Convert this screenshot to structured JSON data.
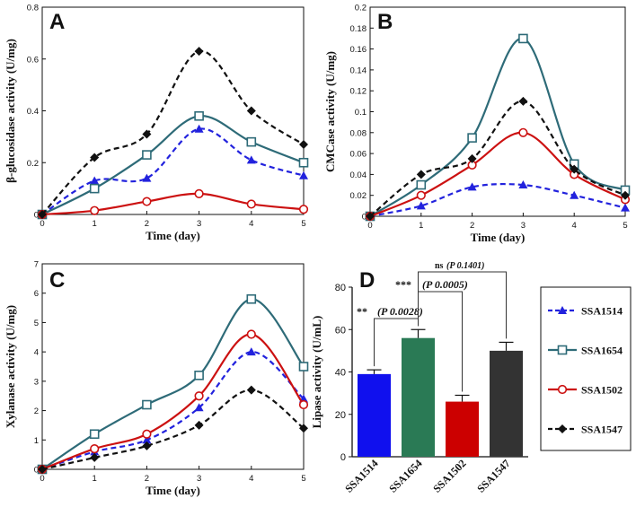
{
  "series_styles": [
    {
      "name": "SSA1514",
      "color": "#2222dd",
      "marker": "triangle",
      "dash": "6,4"
    },
    {
      "name": "SSA1654",
      "color": "#2e6b78",
      "marker": "square",
      "dash": ""
    },
    {
      "name": "SSA1502",
      "color": "#cc1111",
      "marker": "circle",
      "dash": ""
    },
    {
      "name": "SSA1547",
      "color": "#111111",
      "marker": "diamond",
      "dash": "6,4"
    }
  ],
  "legend": {
    "entries": [
      "SSA1514",
      "SSA1654",
      "SSA1502",
      "SSA1547"
    ]
  },
  "chart_data": [
    {
      "panel": "A",
      "type": "line",
      "xlabel": "Time (day)",
      "ylabel": "β-glucosidase activity (U/mg)",
      "x": [
        0,
        1,
        2,
        3,
        4,
        5
      ],
      "xticks": [
        "0",
        "1",
        "2",
        "3",
        "4",
        "5"
      ],
      "ylim": [
        0,
        0.8
      ],
      "yticks": [
        0,
        0.2,
        0.4,
        0.6,
        0.8
      ],
      "yticklabels": [
        "0",
        "0.2",
        "0.4",
        "0.6",
        "0.8"
      ],
      "series": [
        {
          "name": "SSA1514",
          "values": [
            0,
            0.13,
            0.14,
            0.33,
            0.21,
            0.15
          ]
        },
        {
          "name": "SSA1654",
          "values": [
            0,
            0.1,
            0.23,
            0.38,
            0.28,
            0.2
          ]
        },
        {
          "name": "SSA1502",
          "values": [
            0,
            0.015,
            0.05,
            0.08,
            0.04,
            0.02
          ]
        },
        {
          "name": "SSA1547",
          "values": [
            0,
            0.22,
            0.31,
            0.63,
            0.4,
            0.27
          ]
        }
      ]
    },
    {
      "panel": "B",
      "type": "line",
      "xlabel": "Time (day)",
      "ylabel": "CMCase activity (U/mg)",
      "x": [
        0,
        1,
        2,
        3,
        4,
        5
      ],
      "xticks": [
        "0",
        "1",
        "2",
        "3",
        "4",
        "5"
      ],
      "ylim": [
        0,
        0.2
      ],
      "yticks": [
        0,
        0.02,
        0.04,
        0.06,
        0.08,
        0.1,
        0.12,
        0.14,
        0.16,
        0.18,
        0.2
      ],
      "yticklabels": [
        "0",
        "0.02",
        "0.04",
        "0.06",
        "0.08",
        "0.1",
        "0.12",
        "0.14",
        "0.16",
        "0.18",
        "0.2"
      ],
      "series": [
        {
          "name": "SSA1514",
          "values": [
            0,
            0.01,
            0.028,
            0.03,
            0.02,
            0.008
          ]
        },
        {
          "name": "SSA1654",
          "values": [
            0,
            0.03,
            0.075,
            0.17,
            0.05,
            0.025
          ]
        },
        {
          "name": "SSA1502",
          "values": [
            0,
            0.02,
            0.049,
            0.08,
            0.04,
            0.016
          ]
        },
        {
          "name": "SSA1547",
          "values": [
            0,
            0.04,
            0.055,
            0.11,
            0.045,
            0.02
          ]
        }
      ]
    },
    {
      "panel": "C",
      "type": "line",
      "xlabel": "Time (day)",
      "ylabel": "Xylanase activity (U/mg)",
      "x": [
        0,
        1,
        2,
        3,
        4,
        5
      ],
      "xticks": [
        "0",
        "1",
        "2",
        "3",
        "4",
        "5"
      ],
      "ylim": [
        0,
        7
      ],
      "yticks": [
        0,
        1,
        2,
        3,
        4,
        5,
        6,
        7
      ],
      "yticklabels": [
        "0",
        "1",
        "2",
        "3",
        "4",
        "5",
        "6",
        "7"
      ],
      "series": [
        {
          "name": "SSA1514",
          "values": [
            0,
            0.6,
            1.0,
            2.1,
            4.0,
            2.4
          ]
        },
        {
          "name": "SSA1654",
          "values": [
            0,
            1.2,
            2.2,
            3.2,
            5.8,
            3.5
          ]
        },
        {
          "name": "SSA1502",
          "values": [
            0,
            0.7,
            1.2,
            2.5,
            4.6,
            2.2
          ]
        },
        {
          "name": "SSA1547",
          "values": [
            0,
            0.4,
            0.8,
            1.5,
            2.7,
            1.4
          ]
        }
      ]
    },
    {
      "panel": "D",
      "type": "bar",
      "ylabel": "Lipase activity (U/mL)",
      "categories": [
        "SSA1514",
        "SSA1654",
        "SSA1502",
        "SSA1547"
      ],
      "values": [
        39,
        56,
        26,
        50
      ],
      "errors": [
        2,
        4,
        3,
        4
      ],
      "colors": [
        "#1010ee",
        "#2a7a55",
        "#cc0000",
        "#333333"
      ],
      "ylim": [
        0,
        80
      ],
      "yticks": [
        0,
        20,
        40,
        60,
        80
      ],
      "yticklabels": [
        "0",
        "20",
        "40",
        "60",
        "80"
      ],
      "annotations": [
        {
          "stars": "**",
          "text": "(P 0.0028)",
          "from": "SSA1514",
          "to": "SSA1654"
        },
        {
          "stars": "***",
          "text": "(P 0.0005)",
          "from": "SSA1654",
          "to": "SSA1502"
        },
        {
          "stars": "ns",
          "text": "(P 0.1401)",
          "from": "SSA1654",
          "to": "SSA1547"
        }
      ]
    }
  ]
}
